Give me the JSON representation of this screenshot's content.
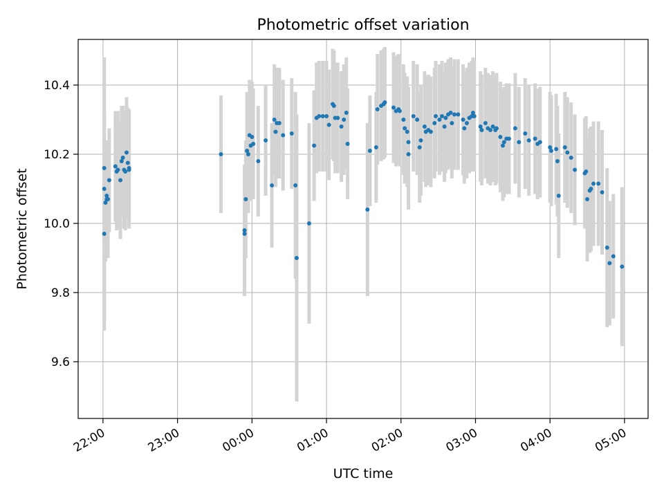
{
  "chart_data": {
    "type": "scatter",
    "title": "Photometric offset variation",
    "xlabel": "UTC time",
    "ylabel": "Photometric offset",
    "x_unit": "UTC, night starting 22:00",
    "xlim": [
      "21:40",
      "05:19"
    ],
    "ylim": [
      9.436,
      10.532
    ],
    "grid": true,
    "x_ticks": [
      "22:00",
      "23:00",
      "00:00",
      "01:00",
      "02:00",
      "03:00",
      "04:00",
      "05:00"
    ],
    "y_ticks": [
      9.6,
      9.8,
      10.0,
      10.2,
      10.4
    ],
    "point_color": "#1f77b4",
    "errorbar_color": "#d3d3d3",
    "points": [
      {
        "t": "22:01",
        "y": 10.16,
        "err": 0.16
      },
      {
        "t": "22:01",
        "y": 9.97,
        "err": 0.28
      },
      {
        "t": "22:01",
        "y": 10.1,
        "err": 0.38
      },
      {
        "t": "22:02",
        "y": 10.06,
        "err": 0.17
      },
      {
        "t": "22:03",
        "y": 10.07,
        "err": 0.17
      },
      {
        "t": "22:03",
        "y": 10.08,
        "err": 0.16
      },
      {
        "t": "22:04",
        "y": 10.07,
        "err": 0.17
      },
      {
        "t": "22:05",
        "y": 10.125,
        "err": 0.15
      },
      {
        "t": "22:10",
        "y": 10.165,
        "err": 0.16
      },
      {
        "t": "22:11",
        "y": 10.15,
        "err": 0.17
      },
      {
        "t": "22:12",
        "y": 10.155,
        "err": 0.17
      },
      {
        "t": "22:14",
        "y": 10.125,
        "err": 0.17
      },
      {
        "t": "22:15",
        "y": 10.18,
        "err": 0.16
      },
      {
        "t": "22:16",
        "y": 10.19,
        "err": 0.15
      },
      {
        "t": "22:17",
        "y": 10.155,
        "err": 0.17
      },
      {
        "t": "22:18",
        "y": 10.15,
        "err": 0.17
      },
      {
        "t": "22:19",
        "y": 10.205,
        "err": 0.16
      },
      {
        "t": "22:20",
        "y": 10.175,
        "err": 0.16
      },
      {
        "t": "22:21",
        "y": 10.16,
        "err": 0.17
      },
      {
        "t": "22:21",
        "y": 10.155,
        "err": 0.17
      },
      {
        "t": "23:35",
        "y": 10.2,
        "err": 0.17
      },
      {
        "t": "23:54",
        "y": 9.98,
        "err": 0.19
      },
      {
        "t": "23:54",
        "y": 9.97,
        "err": 0.18
      },
      {
        "t": "23:55",
        "y": 10.07,
        "err": 0.17
      },
      {
        "t": "23:56",
        "y": 10.21,
        "err": 0.17
      },
      {
        "t": "23:57",
        "y": 10.2,
        "err": 0.17
      },
      {
        "t": "23:58",
        "y": 10.255,
        "err": 0.16
      },
      {
        "t": "23:59",
        "y": 10.225,
        "err": 0.16
      },
      {
        "t": "00:00",
        "y": 10.25,
        "err": 0.16
      },
      {
        "t": "00:01",
        "y": 10.23,
        "err": 0.16
      },
      {
        "t": "00:05",
        "y": 10.18,
        "err": 0.16
      },
      {
        "t": "00:11",
        "y": 10.24,
        "err": 0.16
      },
      {
        "t": "00:16",
        "y": 10.11,
        "err": 0.18
      },
      {
        "t": "00:18",
        "y": 10.3,
        "err": 0.16
      },
      {
        "t": "00:19",
        "y": 10.265,
        "err": 0.16
      },
      {
        "t": "00:20",
        "y": 10.29,
        "err": 0.16
      },
      {
        "t": "00:22",
        "y": 10.29,
        "err": 0.16
      },
      {
        "t": "00:25",
        "y": 10.255,
        "err": 0.16
      },
      {
        "t": "00:32",
        "y": 10.26,
        "err": 0.16
      },
      {
        "t": "00:35",
        "y": 10.11,
        "err": 0.27
      },
      {
        "t": "00:36",
        "y": 9.9,
        "err": 0.415
      },
      {
        "t": "00:46",
        "y": 10.0,
        "err": 0.29
      },
      {
        "t": "00:50",
        "y": 10.225,
        "err": 0.16
      },
      {
        "t": "00:52",
        "y": 10.305,
        "err": 0.16
      },
      {
        "t": "00:54",
        "y": 10.31,
        "err": 0.16
      },
      {
        "t": "00:57",
        "y": 10.31,
        "err": 0.16
      },
      {
        "t": "01:00",
        "y": 10.31,
        "err": 0.16
      },
      {
        "t": "01:02",
        "y": 10.285,
        "err": 0.16
      },
      {
        "t": "01:05",
        "y": 10.345,
        "err": 0.16
      },
      {
        "t": "01:06",
        "y": 10.34,
        "err": 0.16
      },
      {
        "t": "01:07",
        "y": 10.305,
        "err": 0.16
      },
      {
        "t": "01:09",
        "y": 10.305,
        "err": 0.16
      },
      {
        "t": "01:12",
        "y": 10.28,
        "err": 0.16
      },
      {
        "t": "01:14",
        "y": 10.3,
        "err": 0.16
      },
      {
        "t": "01:16",
        "y": 10.32,
        "err": 0.16
      },
      {
        "t": "01:17",
        "y": 10.23,
        "err": 0.16
      },
      {
        "t": "01:33",
        "y": 10.04,
        "err": 0.25
      },
      {
        "t": "01:35",
        "y": 10.21,
        "err": 0.16
      },
      {
        "t": "01:40",
        "y": 10.22,
        "err": 0.16
      },
      {
        "t": "01:41",
        "y": 10.33,
        "err": 0.16
      },
      {
        "t": "01:44",
        "y": 10.34,
        "err": 0.16
      },
      {
        "t": "01:46",
        "y": 10.345,
        "err": 0.16
      },
      {
        "t": "01:47",
        "y": 10.35,
        "err": 0.16
      },
      {
        "t": "01:54",
        "y": 10.335,
        "err": 0.16
      },
      {
        "t": "01:56",
        "y": 10.325,
        "err": 0.16
      },
      {
        "t": "01:58",
        "y": 10.33,
        "err": 0.16
      },
      {
        "t": "01:59",
        "y": 10.325,
        "err": 0.16
      },
      {
        "t": "02:02",
        "y": 10.3,
        "err": 0.16
      },
      {
        "t": "02:03",
        "y": 10.275,
        "err": 0.16
      },
      {
        "t": "02:05",
        "y": 10.265,
        "err": 0.16
      },
      {
        "t": "02:06",
        "y": 10.235,
        "err": 0.16
      },
      {
        "t": "02:06",
        "y": 10.2,
        "err": 0.16
      },
      {
        "t": "02:10",
        "y": 10.31,
        "err": 0.16
      },
      {
        "t": "02:13",
        "y": 10.3,
        "err": 0.16
      },
      {
        "t": "02:15",
        "y": 10.22,
        "err": 0.16
      },
      {
        "t": "02:16",
        "y": 10.24,
        "err": 0.16
      },
      {
        "t": "02:19",
        "y": 10.28,
        "err": 0.16
      },
      {
        "t": "02:20",
        "y": 10.265,
        "err": 0.16
      },
      {
        "t": "02:22",
        "y": 10.27,
        "err": 0.16
      },
      {
        "t": "02:24",
        "y": 10.265,
        "err": 0.16
      },
      {
        "t": "02:27",
        "y": 10.29,
        "err": 0.16
      },
      {
        "t": "02:28",
        "y": 10.31,
        "err": 0.16
      },
      {
        "t": "02:31",
        "y": 10.3,
        "err": 0.16
      },
      {
        "t": "02:33",
        "y": 10.31,
        "err": 0.16
      },
      {
        "t": "02:35",
        "y": 10.28,
        "err": 0.16
      },
      {
        "t": "02:36",
        "y": 10.305,
        "err": 0.16
      },
      {
        "t": "02:38",
        "y": 10.315,
        "err": 0.16
      },
      {
        "t": "02:40",
        "y": 10.32,
        "err": 0.16
      },
      {
        "t": "02:41",
        "y": 10.29,
        "err": 0.16
      },
      {
        "t": "02:43",
        "y": 10.315,
        "err": 0.16
      },
      {
        "t": "02:46",
        "y": 10.315,
        "err": 0.16
      },
      {
        "t": "02:50",
        "y": 10.3,
        "err": 0.16
      },
      {
        "t": "02:51",
        "y": 10.275,
        "err": 0.16
      },
      {
        "t": "02:53",
        "y": 10.29,
        "err": 0.16
      },
      {
        "t": "02:55",
        "y": 10.305,
        "err": 0.16
      },
      {
        "t": "02:57",
        "y": 10.31,
        "err": 0.16
      },
      {
        "t": "02:58",
        "y": 10.32,
        "err": 0.16
      },
      {
        "t": "02:59",
        "y": 10.31,
        "err": 0.16
      },
      {
        "t": "03:04",
        "y": 10.28,
        "err": 0.16
      },
      {
        "t": "03:05",
        "y": 10.27,
        "err": 0.16
      },
      {
        "t": "03:08",
        "y": 10.29,
        "err": 0.16
      },
      {
        "t": "03:10",
        "y": 10.275,
        "err": 0.16
      },
      {
        "t": "03:12",
        "y": 10.27,
        "err": 0.16
      },
      {
        "t": "03:14",
        "y": 10.28,
        "err": 0.16
      },
      {
        "t": "03:16",
        "y": 10.27,
        "err": 0.16
      },
      {
        "t": "03:17",
        "y": 10.275,
        "err": 0.16
      },
      {
        "t": "03:20",
        "y": 10.25,
        "err": 0.16
      },
      {
        "t": "03:22",
        "y": 10.225,
        "err": 0.16
      },
      {
        "t": "03:23",
        "y": 10.235,
        "err": 0.16
      },
      {
        "t": "03:25",
        "y": 10.245,
        "err": 0.16
      },
      {
        "t": "03:27",
        "y": 10.245,
        "err": 0.16
      },
      {
        "t": "03:32",
        "y": 10.275,
        "err": 0.16
      },
      {
        "t": "03:35",
        "y": 10.235,
        "err": 0.16
      },
      {
        "t": "03:40",
        "y": 10.26,
        "err": 0.16
      },
      {
        "t": "03:43",
        "y": 10.24,
        "err": 0.16
      },
      {
        "t": "03:48",
        "y": 10.245,
        "err": 0.16
      },
      {
        "t": "03:50",
        "y": 10.23,
        "err": 0.16
      },
      {
        "t": "03:52",
        "y": 10.235,
        "err": 0.16
      },
      {
        "t": "04:00",
        "y": 10.22,
        "err": 0.16
      },
      {
        "t": "04:01",
        "y": 10.21,
        "err": 0.16
      },
      {
        "t": "04:05",
        "y": 10.215,
        "err": 0.16
      },
      {
        "t": "04:06",
        "y": 10.18,
        "err": 0.16
      },
      {
        "t": "04:07",
        "y": 10.08,
        "err": 0.18
      },
      {
        "t": "04:12",
        "y": 10.22,
        "err": 0.16
      },
      {
        "t": "04:14",
        "y": 10.205,
        "err": 0.16
      },
      {
        "t": "04:17",
        "y": 10.19,
        "err": 0.16
      },
      {
        "t": "04:20",
        "y": 10.155,
        "err": 0.16
      },
      {
        "t": "04:28",
        "y": 10.145,
        "err": 0.16
      },
      {
        "t": "04:29",
        "y": 10.15,
        "err": 0.16
      },
      {
        "t": "04:30",
        "y": 10.07,
        "err": 0.18
      },
      {
        "t": "04:32",
        "y": 10.095,
        "err": 0.18
      },
      {
        "t": "04:33",
        "y": 10.1,
        "err": 0.18
      },
      {
        "t": "04:35",
        "y": 10.115,
        "err": 0.18
      },
      {
        "t": "04:39",
        "y": 10.115,
        "err": 0.18
      },
      {
        "t": "04:42",
        "y": 10.09,
        "err": 0.18
      },
      {
        "t": "04:46",
        "y": 9.93,
        "err": 0.23
      },
      {
        "t": "04:48",
        "y": 9.885,
        "err": 0.18
      },
      {
        "t": "04:51",
        "y": 9.905,
        "err": 0.18
      },
      {
        "t": "04:58",
        "y": 9.875,
        "err": 0.23
      }
    ]
  }
}
